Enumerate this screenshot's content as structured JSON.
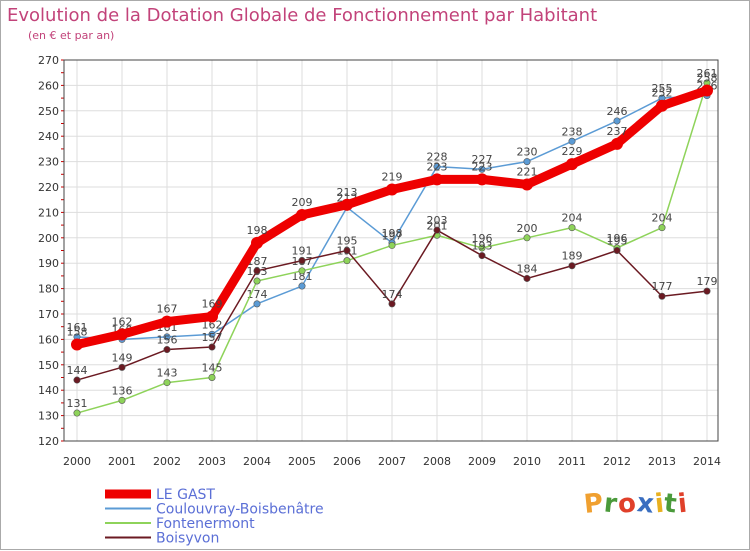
{
  "chart_data": {
    "type": "line",
    "title": "Evolution de la Dotation Globale de Fonctionnement par Habitant",
    "subtitle": "(en € et par an)",
    "x": [
      "2000",
      "2001",
      "2002",
      "2003",
      "2004",
      "2005",
      "2006",
      "2007",
      "2008",
      "2009",
      "2010",
      "2011",
      "2012",
      "2013",
      "2014"
    ],
    "ylim": [
      120,
      270
    ],
    "yticks": [
      120,
      130,
      140,
      150,
      160,
      170,
      180,
      190,
      200,
      210,
      220,
      230,
      240,
      250,
      260,
      270
    ],
    "grid": true,
    "legend_position": "bottom-left",
    "series": [
      {
        "name": "LE GAST",
        "color": "#ee0000",
        "emphasis": true,
        "values": [
          158,
          162,
          167,
          169,
          198,
          209,
          213,
          219,
          223,
          223,
          221,
          229,
          237,
          252,
          258
        ]
      },
      {
        "name": "Coulouvray-Boisbenâtre",
        "color": "#5b9bd5",
        "values": [
          161,
          160,
          161,
          162,
          174,
          181,
          212,
          198,
          228,
          227,
          230,
          238,
          246,
          255,
          256
        ]
      },
      {
        "name": "Fontenermont",
        "color": "#8ed35a",
        "values": [
          131,
          136,
          143,
          145,
          183,
          187,
          191,
          197,
          201,
          196,
          200,
          204,
          196,
          204,
          261
        ]
      },
      {
        "name": "Boisyvon",
        "color": "#6b1a22",
        "values": [
          144,
          149,
          156,
          157,
          187,
          191,
          195,
          174,
          203,
          193,
          184,
          189,
          195,
          177,
          179
        ]
      }
    ]
  },
  "logo": {
    "text": "Proxiti",
    "colors": [
      "#f0a030",
      "#4a9a3a",
      "#e0402a",
      "#3a6ec0",
      "#e8b020",
      "#4a9a3a",
      "#e0402a"
    ]
  }
}
